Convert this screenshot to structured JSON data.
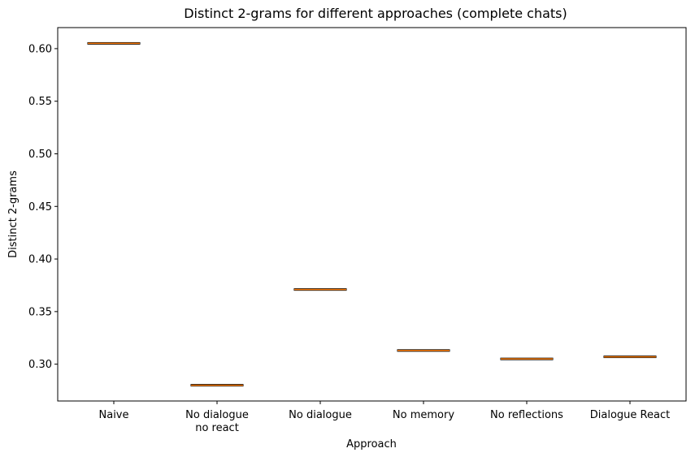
{
  "chart_data": {
    "type": "box",
    "title": "Distinct 2-grams for different approaches (complete chats)",
    "xlabel": "Approach",
    "ylabel": "Distinct 2-grams",
    "categories": [
      "Naive",
      "No dialogue\nno react",
      "No dialogue",
      "No memory",
      "No reflections",
      "Dialogue React"
    ],
    "values": [
      0.605,
      0.28,
      0.371,
      0.313,
      0.305,
      0.307
    ],
    "yticks": [
      "0.30",
      "0.35",
      "0.40",
      "0.45",
      "0.50",
      "0.55",
      "0.60"
    ],
    "ylim": [
      0.265,
      0.62
    ],
    "grid": false,
    "colors": {
      "median": "#ff7f0e",
      "box": "#000000"
    }
  }
}
